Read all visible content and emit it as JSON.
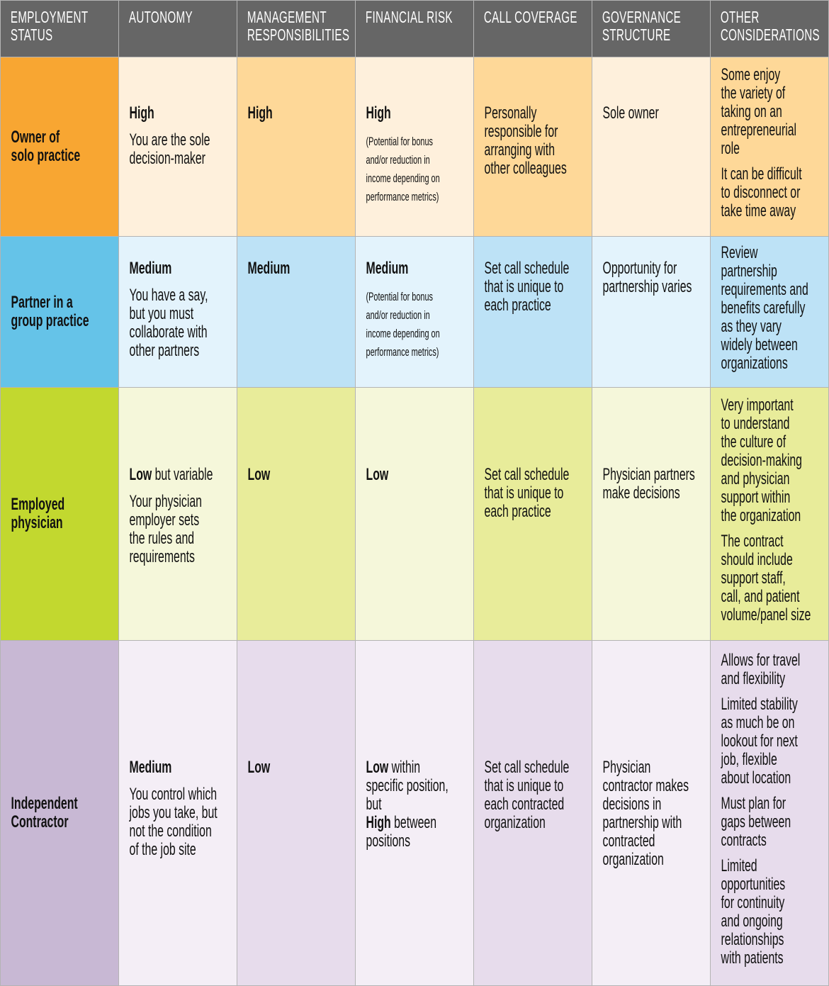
{
  "headers": [
    "EMPLOYMENT\nSTATUS",
    "AUTONOMY",
    "MANAGEMENT\nRESPONSIBILITIES",
    "FINANCIAL RISK",
    "CALL COVERAGE",
    "GOVERNANCE\nSTRUCTURE",
    "OTHER\nCONSIDERATIONS"
  ],
  "header_color": "#666666",
  "rows": [
    {
      "status": "Owner of\nsolo practice",
      "colors": {
        "strong": "#f8a632",
        "light": "#fef0dc",
        "medium": "#fed898"
      },
      "cells": [
        [
          [
            {
              "text": "High",
              "bold": true
            }
          ],
          [
            {
              "text": "You are the sole\ndecision-maker"
            }
          ]
        ],
        [
          [
            {
              "text": "High",
              "bold": true
            }
          ]
        ],
        [
          [
            {
              "text": "High",
              "bold": true
            }
          ],
          [
            {
              "text": "(Potential for bonus\nand/or reduction in\nincome depending on\nperformance metrics)",
              "small": true
            }
          ]
        ],
        [
          [
            {
              "text": "Personally\nresponsible for\narranging with\nother colleagues"
            }
          ]
        ],
        [
          [
            {
              "text": "Sole owner"
            }
          ]
        ],
        [
          [
            {
              "text": "Some enjoy\nthe variety of\ntaking on an\nentrepreneurial\nrole"
            }
          ],
          [
            {
              "text": "It can be difficult\nto disconnect or\ntake time away"
            }
          ]
        ]
      ]
    },
    {
      "status": "Partner in a\ngroup practice",
      "colors": {
        "strong": "#65c3e8",
        "light": "#e3f3fc",
        "medium": "#bde2f6"
      },
      "cells": [
        [
          [
            {
              "text": "Medium",
              "bold": true
            }
          ],
          [
            {
              "text": "You have a say,\nbut you must\ncollaborate with\nother partners"
            }
          ]
        ],
        [
          [
            {
              "text": "Medium",
              "bold": true
            }
          ]
        ],
        [
          [
            {
              "text": "Medium",
              "bold": true
            }
          ],
          [
            {
              "text": "(Potential for bonus\nand/or reduction in\nincome depending on\nperformance metrics)",
              "small": true
            }
          ]
        ],
        [
          [
            {
              "text": "Set call schedule\nthat is unique to\neach practice"
            }
          ]
        ],
        [
          [
            {
              "text": "Opportunity for\npartnership varies"
            }
          ]
        ],
        [
          [
            {
              "text": "Review\npartnership\nrequirements and\nbenefits carefully\nas they vary\nwidely between\norganizations"
            }
          ]
        ]
      ]
    },
    {
      "status": "Employed\nphysician",
      "colors": {
        "strong": "#c2d82f",
        "light": "#f5f7da",
        "medium": "#e8ec9a"
      },
      "cells": [
        [
          [
            {
              "text": "Low",
              "bold": true
            },
            {
              "text": " but variable"
            }
          ],
          [
            {
              "text": "Your physician\nemployer sets\nthe rules and\nrequirements"
            }
          ]
        ],
        [
          [
            {
              "text": "Low",
              "bold": true
            }
          ]
        ],
        [
          [
            {
              "text": "Low",
              "bold": true
            }
          ]
        ],
        [
          [
            {
              "text": "Set call schedule\nthat is unique to\neach practice"
            }
          ]
        ],
        [
          [
            {
              "text": "Physician partners\nmake decisions"
            }
          ]
        ],
        [
          [
            {
              "text": "Very important\nto understand\nthe culture of\ndecision-making\nand physician\nsupport within\nthe organization"
            }
          ],
          [
            {
              "text": "The contract\nshould include\nsupport staff,\ncall, and patient\nvolume/panel size"
            }
          ]
        ]
      ]
    },
    {
      "status": "Independent\nContractor",
      "colors": {
        "strong": "#c8b8d4",
        "light": "#f4eef6",
        "medium": "#e7dcec"
      },
      "cells": [
        [
          [
            {
              "text": "Medium",
              "bold": true
            }
          ],
          [
            {
              "text": "You control which\njobs you take, but\nnot the condition\nof the job site"
            }
          ]
        ],
        [
          [
            {
              "text": "Low",
              "bold": true
            }
          ]
        ],
        [
          [
            {
              "text": "Low",
              "bold": true
            },
            {
              "text": " within\nspecific position,\nbut\n"
            },
            {
              "text": "High",
              "bold": true
            },
            {
              "text": " between\npositions"
            }
          ]
        ],
        [
          [
            {
              "text": "Set call schedule\nthat is unique to\neach contracted\norganization"
            }
          ]
        ],
        [
          [
            {
              "text": "Physician\ncontractor makes\ndecisions in\npartnership with\ncontracted\norganization"
            }
          ]
        ],
        [
          [
            {
              "text": "Allows for travel\nand flexibility"
            }
          ],
          [
            {
              "text": "Limited stability\nas much be on\nlookout for next\njob, flexible\nabout location"
            }
          ],
          [
            {
              "text": "Must plan for\ngaps between\ncontracts"
            }
          ],
          [
            {
              "text": "Limited\nopportunities\nfor continuity\nand ongoing\nrelationships\nwith patients"
            }
          ]
        ]
      ]
    }
  ]
}
